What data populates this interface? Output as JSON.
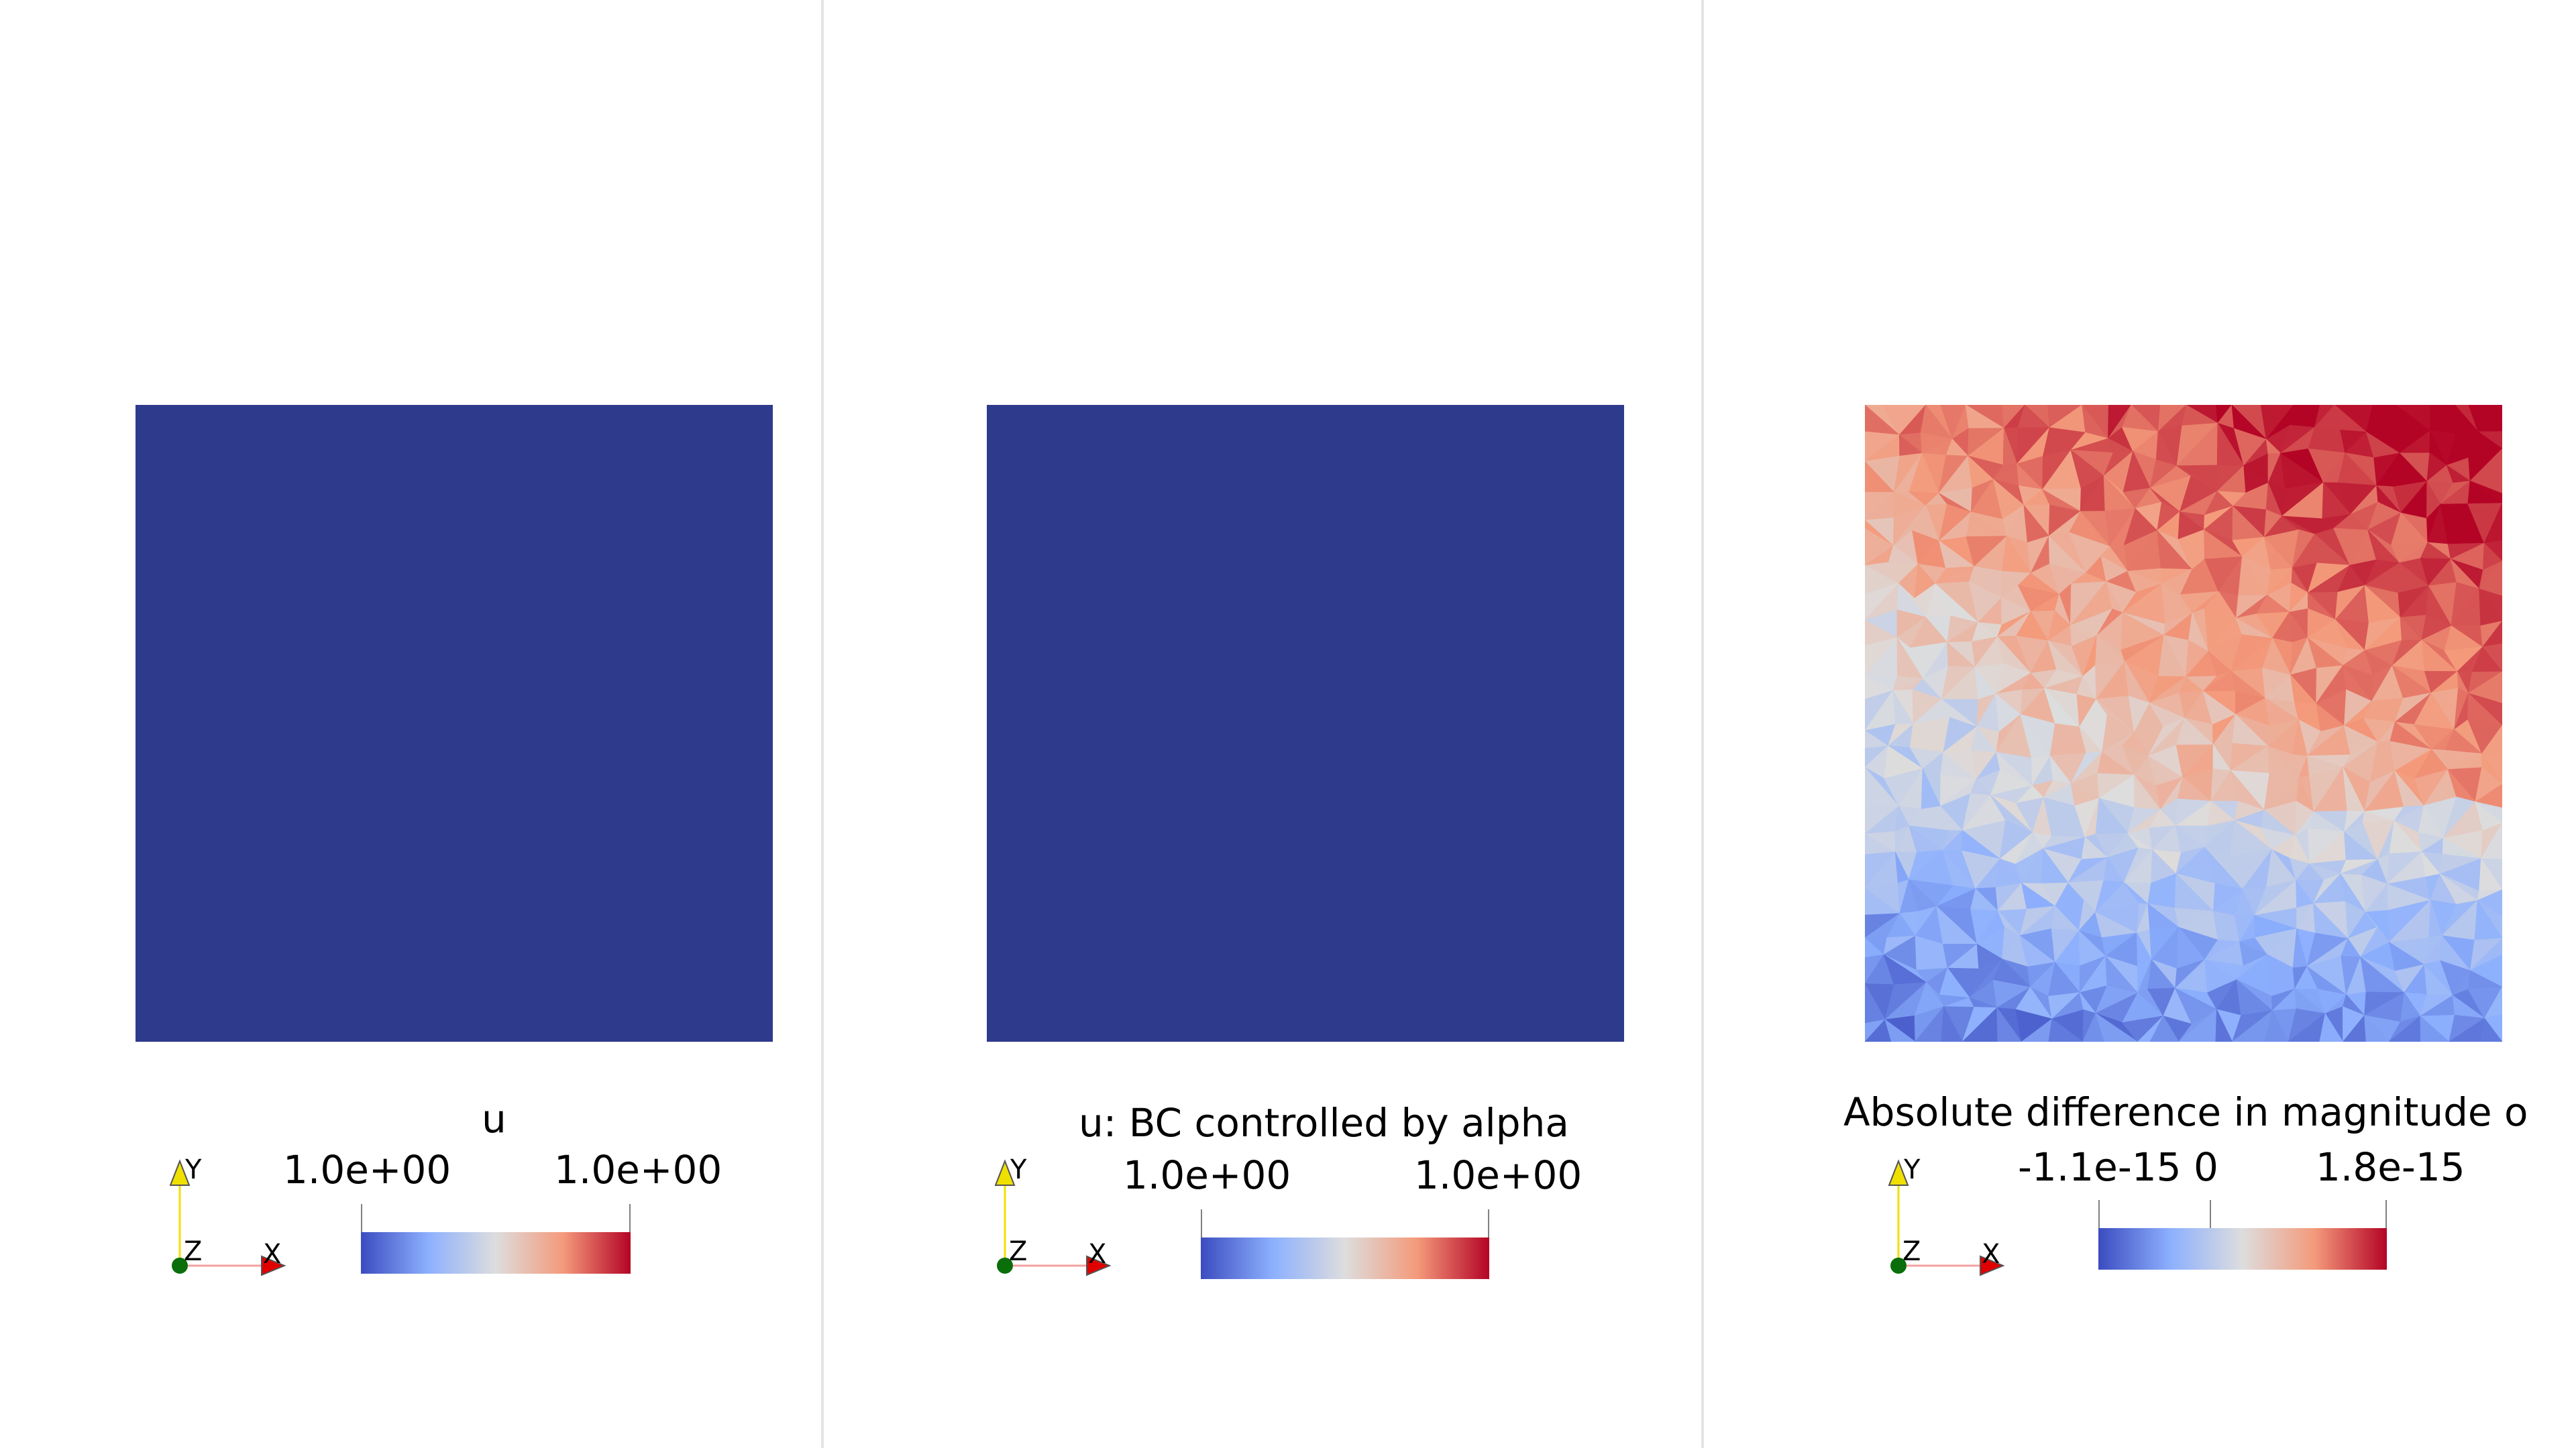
{
  "views": [
    {
      "mesh_color": "#2e3a8c",
      "scalar_bar": {
        "title": "u",
        "labels": [
          "1.0e+00",
          "1.0e+00"
        ]
      }
    },
    {
      "mesh_color": "#2e3a8c",
      "scalar_bar": {
        "title": "u: BC controlled by alpha",
        "labels": [
          "1.0e+00",
          "1.0e+00"
        ]
      }
    },
    {
      "scalar_bar": {
        "title": "Absolute difference in magnitude o",
        "labels": [
          "-1.1e-15",
          "0",
          "1.8e-15"
        ]
      }
    }
  ],
  "orientation_axes": {
    "y_label": "Y",
    "z_label": "Z",
    "x_label": "X",
    "y_color": "#f0e000",
    "x_color": "#e00000",
    "origin_color": "#0a6e0a"
  },
  "colormap": {
    "name": "Cool to Warm",
    "stops": [
      "#3b4cc0",
      "#8db0fe",
      "#dddddd",
      "#f49a7b",
      "#b40426"
    ]
  }
}
